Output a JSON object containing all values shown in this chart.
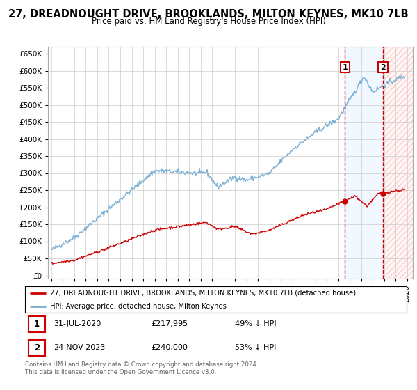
{
  "title": "27, DREADNOUGHT DRIVE, BROOKLANDS, MILTON KEYNES, MK10 7LB",
  "subtitle": "Price paid vs. HM Land Registry's House Price Index (HPI)",
  "hpi_color": "#7bafd4",
  "price_color": "#cc0000",
  "ylim": [
    0,
    670000
  ],
  "yticks": [
    0,
    50000,
    100000,
    150000,
    200000,
    250000,
    300000,
    350000,
    400000,
    450000,
    500000,
    550000,
    600000,
    650000
  ],
  "xlim_start": 1994.7,
  "xlim_end": 2026.5,
  "sale1_x": 2020.58,
  "sale1_y": 217995,
  "sale2_x": 2023.9,
  "sale2_y": 240000,
  "vline1_x": 2020.58,
  "vline2_x": 2023.9,
  "shade_start": 2020.58,
  "shade_end": 2023.9,
  "legend_line1": "27, DREADNOUGHT DRIVE, BROOKLANDS, MILTON KEYNES, MK10 7LB (detached house)",
  "legend_line2": "HPI: Average price, detached house, Milton Keynes",
  "annotation1_date": "31-JUL-2020",
  "annotation1_price": "£217,995",
  "annotation1_hpi": "49% ↓ HPI",
  "annotation2_date": "24-NOV-2023",
  "annotation2_price": "£240,000",
  "annotation2_hpi": "53% ↓ HPI",
  "footer": "Contains HM Land Registry data © Crown copyright and database right 2024.\nThis data is licensed under the Open Government Licence v3.0.",
  "background_color": "#ffffff",
  "grid_color": "#cccccc"
}
